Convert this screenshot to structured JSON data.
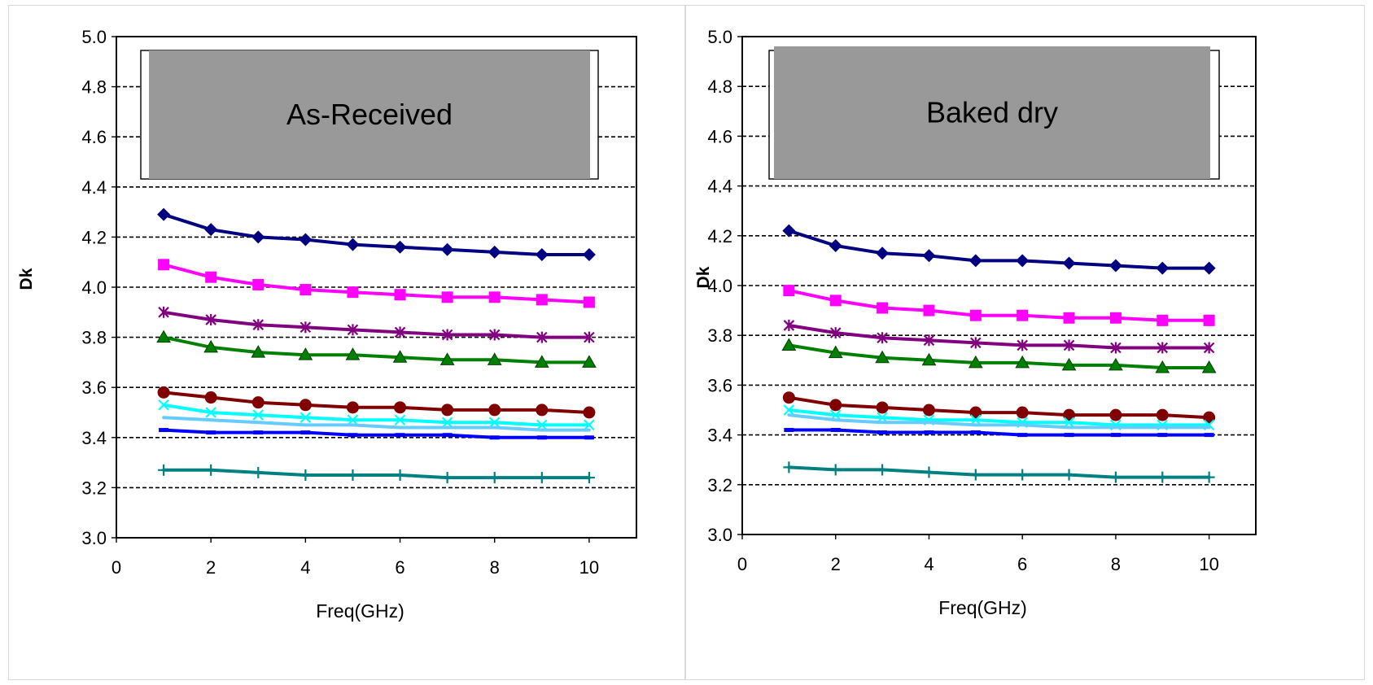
{
  "chart_data": [
    {
      "type": "line",
      "title": "As-Received",
      "xlabel": "Freq(GHz)",
      "ylabel": "Dk",
      "xlim": [
        0,
        11
      ],
      "ylim": [
        3.0,
        5.0
      ],
      "xticks": [
        "0",
        "2",
        "4",
        "6",
        "8",
        "10"
      ],
      "yticks": [
        "3.0",
        "3.2",
        "3.4",
        "3.6",
        "3.8",
        "4.0",
        "4.2",
        "4.4",
        "4.6",
        "4.8",
        "5.0"
      ],
      "grid": "horizontal dashed",
      "x": [
        1,
        2,
        3,
        4,
        5,
        6,
        7,
        8,
        9,
        10
      ],
      "series": [
        {
          "color": "#000080",
          "marker": "diamond",
          "values": [
            4.29,
            4.23,
            4.2,
            4.19,
            4.17,
            4.16,
            4.15,
            4.14,
            4.13,
            4.13
          ]
        },
        {
          "color": "#ff00ff",
          "marker": "square",
          "values": [
            4.09,
            4.04,
            4.01,
            3.99,
            3.98,
            3.97,
            3.96,
            3.96,
            3.95,
            3.94
          ]
        },
        {
          "color": "#800080",
          "marker": "asterisk",
          "values": [
            3.9,
            3.87,
            3.85,
            3.84,
            3.83,
            3.82,
            3.81,
            3.81,
            3.8,
            3.8
          ]
        },
        {
          "color": "#008000",
          "marker": "triangle",
          "values": [
            3.8,
            3.76,
            3.74,
            3.73,
            3.73,
            3.72,
            3.71,
            3.71,
            3.7,
            3.7
          ]
        },
        {
          "color": "#800000",
          "marker": "circle",
          "values": [
            3.58,
            3.56,
            3.54,
            3.53,
            3.52,
            3.52,
            3.51,
            3.51,
            3.51,
            3.5
          ]
        },
        {
          "color": "#00ffff",
          "marker": "x",
          "values": [
            3.53,
            3.5,
            3.49,
            3.48,
            3.47,
            3.47,
            3.46,
            3.46,
            3.45,
            3.45
          ]
        },
        {
          "color": "#66ccff",
          "marker": "none",
          "values": [
            3.48,
            3.47,
            3.46,
            3.45,
            3.45,
            3.44,
            3.44,
            3.44,
            3.43,
            3.43
          ]
        },
        {
          "color": "#0000ff",
          "marker": "dash",
          "values": [
            3.43,
            3.42,
            3.42,
            3.42,
            3.41,
            3.41,
            3.41,
            3.4,
            3.4,
            3.4
          ]
        },
        {
          "color": "#008080",
          "marker": "plus",
          "values": [
            3.27,
            3.27,
            3.26,
            3.25,
            3.25,
            3.25,
            3.24,
            3.24,
            3.24,
            3.24
          ]
        }
      ]
    },
    {
      "type": "line",
      "title": "Baked dry",
      "xlabel": "Freq(GHz)",
      "ylabel": "Dk",
      "xlim": [
        0,
        11
      ],
      "ylim": [
        3.0,
        5.0
      ],
      "xticks": [
        "0",
        "2",
        "4",
        "6",
        "8",
        "10"
      ],
      "yticks": [
        "3.0",
        "3.2",
        "3.4",
        "3.6",
        "3.8",
        "4.0",
        "4.2",
        "4.4",
        "4.6",
        "4.8",
        "5.0"
      ],
      "grid": "horizontal dashed",
      "x": [
        1,
        2,
        3,
        4,
        5,
        6,
        7,
        8,
        9,
        10
      ],
      "series": [
        {
          "color": "#000080",
          "marker": "diamond",
          "values": [
            4.22,
            4.16,
            4.13,
            4.12,
            4.1,
            4.1,
            4.09,
            4.08,
            4.07,
            4.07
          ]
        },
        {
          "color": "#ff00ff",
          "marker": "square",
          "values": [
            3.98,
            3.94,
            3.91,
            3.9,
            3.88,
            3.88,
            3.87,
            3.87,
            3.86,
            3.86
          ]
        },
        {
          "color": "#800080",
          "marker": "asterisk",
          "values": [
            3.84,
            3.81,
            3.79,
            3.78,
            3.77,
            3.76,
            3.76,
            3.75,
            3.75,
            3.75
          ]
        },
        {
          "color": "#008000",
          "marker": "triangle",
          "values": [
            3.76,
            3.73,
            3.71,
            3.7,
            3.69,
            3.69,
            3.68,
            3.68,
            3.67,
            3.67
          ]
        },
        {
          "color": "#800000",
          "marker": "circle",
          "values": [
            3.55,
            3.52,
            3.51,
            3.5,
            3.49,
            3.49,
            3.48,
            3.48,
            3.48,
            3.47
          ]
        },
        {
          "color": "#00ffff",
          "marker": "x",
          "values": [
            3.5,
            3.48,
            3.47,
            3.46,
            3.46,
            3.45,
            3.45,
            3.44,
            3.44,
            3.44
          ]
        },
        {
          "color": "#66ccff",
          "marker": "none",
          "values": [
            3.48,
            3.46,
            3.45,
            3.45,
            3.44,
            3.44,
            3.43,
            3.43,
            3.43,
            3.43
          ]
        },
        {
          "color": "#0000ff",
          "marker": "dash",
          "values": [
            3.42,
            3.42,
            3.41,
            3.41,
            3.41,
            3.4,
            3.4,
            3.4,
            3.4,
            3.4
          ]
        },
        {
          "color": "#008080",
          "marker": "plus",
          "values": [
            3.27,
            3.26,
            3.26,
            3.25,
            3.24,
            3.24,
            3.24,
            3.23,
            3.23,
            3.23
          ]
        }
      ]
    }
  ]
}
